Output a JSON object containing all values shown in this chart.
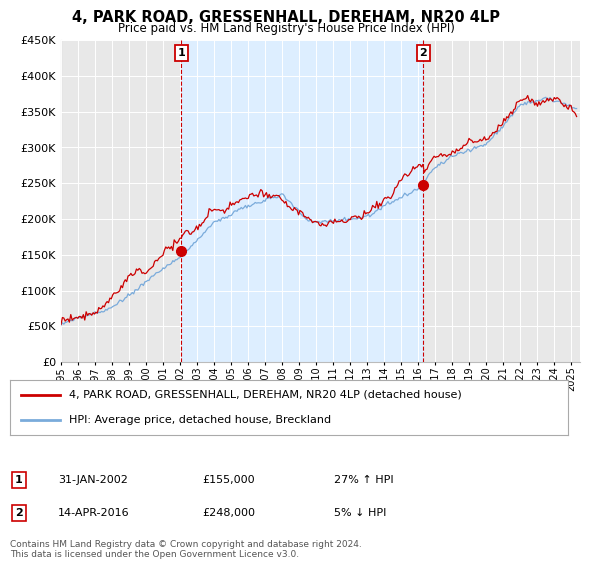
{
  "title": "4, PARK ROAD, GRESSENHALL, DEREHAM, NR20 4LP",
  "subtitle": "Price paid vs. HM Land Registry's House Price Index (HPI)",
  "footer": "Contains HM Land Registry data © Crown copyright and database right 2024.\nThis data is licensed under the Open Government Licence v3.0.",
  "legend_line1": "4, PARK ROAD, GRESSENHALL, DEREHAM, NR20 4LP (detached house)",
  "legend_line2": "HPI: Average price, detached house, Breckland",
  "annotation1_date": "31-JAN-2002",
  "annotation1_price": "£155,000",
  "annotation1_hpi": "27% ↑ HPI",
  "annotation2_date": "14-APR-2016",
  "annotation2_price": "£248,000",
  "annotation2_hpi": "5% ↓ HPI",
  "ylim": [
    0,
    450000
  ],
  "yticks": [
    0,
    50000,
    100000,
    150000,
    200000,
    250000,
    300000,
    350000,
    400000,
    450000
  ],
  "background_color": "#ffffff",
  "plot_bg_color": "#e8e8e8",
  "shade_color": "#ddeeff",
  "grid_color": "#ffffff",
  "red_color": "#cc0000",
  "blue_color": "#7aabdb",
  "annotation_line_color": "#cc0000",
  "t1": 2002.08,
  "v1": 155000,
  "t2": 2016.29,
  "v2": 248000
}
